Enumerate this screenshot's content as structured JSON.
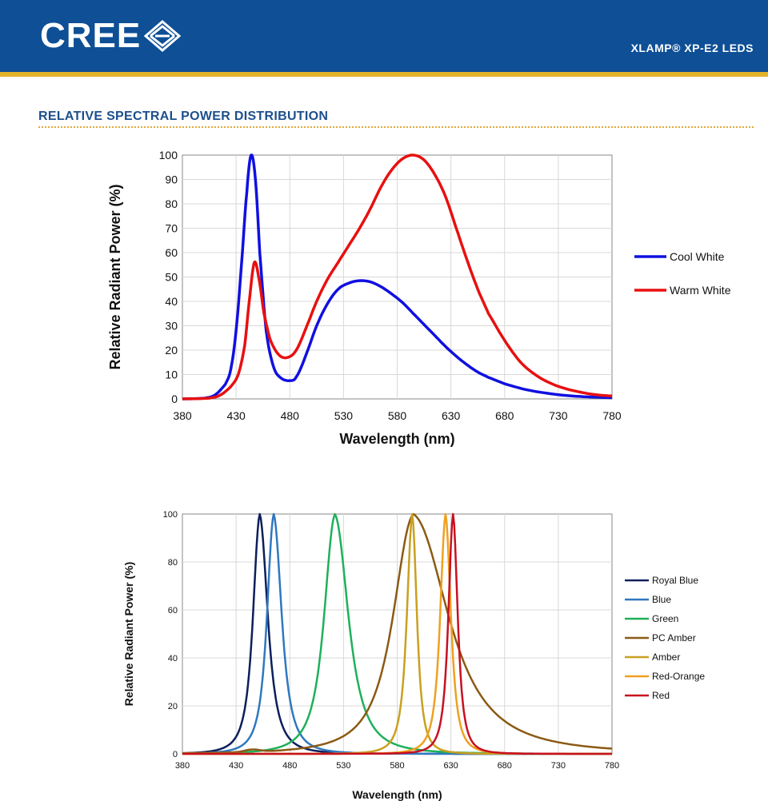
{
  "header": {
    "logo_text": "CREE",
    "product_title": "XLAMP® XP-E2 LEDS",
    "background_color": "#0e4f96",
    "stripe_color": "#e3b12a"
  },
  "section": {
    "title": "RELATIVE SPECTRAL POWER DISTRIBUTION"
  },
  "chart_data": [
    {
      "type": "line",
      "title": "",
      "xlabel": "Wavelength (nm)",
      "ylabel": "Relative Radiant Power (%)",
      "xlim": [
        380,
        780
      ],
      "ylim": [
        0,
        100
      ],
      "xticks": [
        380,
        430,
        480,
        530,
        580,
        630,
        680,
        730,
        780
      ],
      "yticks": [
        0,
        10,
        20,
        30,
        40,
        50,
        60,
        70,
        80,
        90,
        100
      ],
      "grid": true,
      "legend_position": "right",
      "series": [
        {
          "name": "Cool White",
          "color": "#1010e0",
          "points": [
            [
              380,
              0
            ],
            [
              400,
              0.3
            ],
            [
              410,
              1.5
            ],
            [
              420,
              6
            ],
            [
              425,
              12
            ],
            [
              430,
              28
            ],
            [
              435,
              55
            ],
            [
              440,
              85
            ],
            [
              444,
              100
            ],
            [
              448,
              90
            ],
            [
              452,
              60
            ],
            [
              458,
              28
            ],
            [
              465,
              13
            ],
            [
              472,
              8.5
            ],
            [
              480,
              7.5
            ],
            [
              486,
              9
            ],
            [
              495,
              18
            ],
            [
              505,
              30
            ],
            [
              515,
              39
            ],
            [
              525,
              45
            ],
            [
              535,
              47.5
            ],
            [
              545,
              48.5
            ],
            [
              555,
              48
            ],
            [
              565,
              46
            ],
            [
              575,
              43
            ],
            [
              585,
              39.5
            ],
            [
              595,
              35
            ],
            [
              605,
              30.5
            ],
            [
              615,
              26
            ],
            [
              625,
              21.5
            ],
            [
              635,
              17.5
            ],
            [
              645,
              14
            ],
            [
              655,
              11
            ],
            [
              665,
              8.8
            ],
            [
              680,
              6.2
            ],
            [
              700,
              3.8
            ],
            [
              720,
              2.3
            ],
            [
              740,
              1.3
            ],
            [
              760,
              0.8
            ],
            [
              780,
              0.5
            ]
          ]
        },
        {
          "name": "Warm White",
          "color": "#e81010",
          "points": [
            [
              380,
              0
            ],
            [
              405,
              0.3
            ],
            [
              415,
              1.5
            ],
            [
              425,
              5
            ],
            [
              432,
              10
            ],
            [
              438,
              22
            ],
            [
              443,
              43
            ],
            [
              447,
              56
            ],
            [
              451,
              50
            ],
            [
              456,
              35
            ],
            [
              462,
              24
            ],
            [
              470,
              18
            ],
            [
              478,
              17
            ],
            [
              486,
              20
            ],
            [
              495,
              29
            ],
            [
              505,
              40
            ],
            [
              515,
              49
            ],
            [
              525,
              56
            ],
            [
              535,
              63
            ],
            [
              545,
              70
            ],
            [
              555,
              78
            ],
            [
              565,
              87
            ],
            [
              575,
              94
            ],
            [
              585,
              98.5
            ],
            [
              595,
              100
            ],
            [
              605,
              98
            ],
            [
              615,
              92
            ],
            [
              625,
              83
            ],
            [
              635,
              70
            ],
            [
              645,
              57
            ],
            [
              655,
              45
            ],
            [
              665,
              35
            ],
            [
              680,
              24
            ],
            [
              695,
              15
            ],
            [
              710,
              9.5
            ],
            [
              725,
              6
            ],
            [
              740,
              3.8
            ],
            [
              760,
              2
            ],
            [
              780,
              1.2
            ]
          ]
        }
      ]
    },
    {
      "type": "line",
      "title": "",
      "xlabel": "Wavelength (nm)",
      "ylabel": "Relative Radiant Power (%)",
      "xlim": [
        380,
        780
      ],
      "ylim": [
        0,
        100
      ],
      "xticks": [
        380,
        430,
        480,
        530,
        580,
        630,
        680,
        730,
        780
      ],
      "yticks": [
        0,
        20,
        40,
        60,
        80,
        100
      ],
      "grid": true,
      "legend_position": "right",
      "series": [
        {
          "name": "Royal Blue",
          "color": "#0c1f5c",
          "peak": 452,
          "width_left": 10,
          "width_right": 12
        },
        {
          "name": "Blue",
          "color": "#2e78c0",
          "peak": 465,
          "width_left": 10,
          "width_right": 12
        },
        {
          "name": "Green",
          "color": "#1fb05a",
          "peak": 522,
          "width_left": 16,
          "width_right": 20
        },
        {
          "name": "PC Amber",
          "color": "#8b5a14",
          "peak": 595,
          "width_left": 30,
          "width_right": 52,
          "baseline_bump": 1
        },
        {
          "name": "Amber",
          "color": "#c9a020",
          "peak": 594,
          "width_left": 8,
          "width_right": 7
        },
        {
          "name": "Red-Orange",
          "color": "#f0a020",
          "peak": 625,
          "width_left": 8,
          "width_right": 8
        },
        {
          "name": "Red",
          "color": "#c81020",
          "peak": 632,
          "width_left": 7,
          "width_right": 7
        }
      ]
    }
  ]
}
